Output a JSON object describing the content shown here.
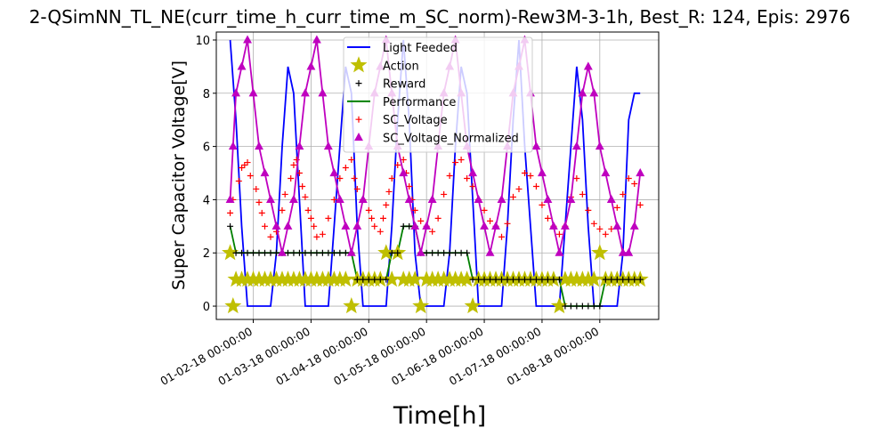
{
  "chart_data": {
    "type": "line",
    "title": "2-QSimNN_TL_NE(curr_time_h_curr_time_m_SC_norm)-Rew3M-3-1h, Best_R: 124, Epis: 2976",
    "xlabel": "Time[h]",
    "ylabel": "Super Capacitor Voltage[V]",
    "ylim": [
      -0.5,
      10.3
    ],
    "xlim": [
      -2.4,
      74.2
    ],
    "yticks": [
      "0",
      "2",
      "4",
      "6",
      "8",
      "10"
    ],
    "xticks": [
      {
        "label": "01-02-18 00:00:00",
        "x": 4
      },
      {
        "label": "01-03-18 00:00:00",
        "x": 14
      },
      {
        "label": "01-04-18 00:00:00",
        "x": 24
      },
      {
        "label": "01-05-18 00:00:00",
        "x": 34
      },
      {
        "label": "01-06-18 00:00:00",
        "x": 44
      },
      {
        "label": "01-07-18 00:00:00",
        "x": 54
      },
      {
        "label": "01-08-18 00:00:00",
        "x": 64
      }
    ],
    "grid": true,
    "legend_position": "upper-center",
    "series": [
      {
        "name": "Light Feeded",
        "style": "line",
        "color": "#0000ff",
        "x": [
          0,
          1,
          2,
          3,
          4,
          5,
          6,
          7,
          8,
          9,
          10,
          11,
          12,
          13,
          14,
          15,
          16,
          17,
          18,
          19,
          20,
          21,
          22,
          23,
          24,
          25,
          26,
          27,
          28,
          29,
          30,
          31,
          32,
          33,
          34,
          35,
          36,
          37,
          38,
          39,
          40,
          41,
          42,
          43,
          44,
          45,
          46,
          47,
          48,
          49,
          50,
          51,
          52,
          53,
          54,
          55,
          56,
          57,
          58,
          59,
          60,
          61,
          62,
          63,
          64,
          65,
          66,
          67,
          68,
          69,
          70,
          71
        ],
        "y": [
          10,
          7,
          3,
          0,
          0,
          0,
          0,
          0,
          2,
          6,
          9,
          8,
          4,
          0,
          0,
          0,
          0,
          0,
          3,
          6,
          9,
          8,
          3,
          0,
          0,
          0,
          0,
          0,
          3,
          7,
          10,
          7,
          2,
          0,
          0,
          0,
          0,
          0,
          2,
          6,
          9,
          8,
          4,
          0,
          0,
          0,
          0,
          0,
          3,
          7,
          10,
          6,
          3,
          0,
          0,
          0,
          0,
          0,
          3,
          6,
          9,
          7,
          3,
          0,
          0,
          0,
          0,
          0,
          2,
          7,
          8,
          8
        ]
      },
      {
        "name": "Action",
        "style": "star",
        "color": "#bfbf00",
        "x": [
          0,
          0.5,
          1,
          2,
          3,
          4,
          5,
          6,
          7,
          8,
          9,
          10,
          11,
          12,
          13,
          14,
          15,
          16,
          17,
          18,
          19,
          20,
          21,
          22,
          23,
          24,
          25,
          26,
          27,
          28,
          29,
          30,
          31,
          32,
          33,
          34,
          35,
          36,
          37,
          38,
          39,
          40,
          41,
          42,
          43,
          44,
          45,
          46,
          47,
          48,
          49,
          50,
          51,
          52,
          53,
          54,
          55,
          56,
          57,
          58,
          59,
          60,
          61,
          62,
          63,
          64,
          65,
          66,
          67,
          68,
          69,
          70,
          71
        ],
        "y": [
          2,
          0,
          1,
          1,
          1,
          1,
          1,
          1,
          1,
          1,
          1,
          1,
          1,
          1,
          1,
          1,
          1,
          1,
          1,
          1,
          1,
          1,
          0,
          1,
          1,
          1,
          1,
          1,
          2,
          1,
          2,
          1,
          1,
          1,
          0,
          1,
          1,
          1,
          1,
          1,
          1,
          1,
          1,
          0,
          1,
          1,
          1,
          1,
          1,
          1,
          1,
          1,
          1,
          1,
          1,
          1,
          1,
          1,
          0,
          1,
          1,
          1,
          1,
          1,
          1,
          2,
          1,
          1,
          1,
          1,
          1,
          1,
          1
        ]
      },
      {
        "name": "Reward",
        "style": "plus",
        "color": "#000000",
        "x": [
          0,
          1,
          2,
          3,
          4,
          5,
          6,
          7,
          8,
          9,
          10,
          11,
          12,
          13,
          14,
          15,
          16,
          17,
          18,
          19,
          20,
          21,
          22,
          23,
          24,
          25,
          26,
          27,
          28,
          29,
          30,
          31,
          32,
          33,
          34,
          35,
          36,
          37,
          38,
          39,
          40,
          41,
          42,
          43,
          44,
          45,
          46,
          47,
          48,
          49,
          50,
          51,
          52,
          53,
          54,
          55,
          56,
          57,
          58,
          59,
          60,
          61,
          62,
          63,
          64,
          65,
          66,
          67,
          68,
          69,
          70,
          71
        ],
        "y": [
          3,
          2,
          2,
          2,
          2,
          2,
          2,
          2,
          2,
          2,
          2,
          2,
          2,
          2,
          2,
          2,
          2,
          2,
          2,
          2,
          2,
          2,
          1,
          1,
          1,
          1,
          1,
          1,
          2,
          2,
          3,
          3,
          3,
          2,
          2,
          2,
          2,
          2,
          2,
          2,
          2,
          2,
          1,
          1,
          1,
          1,
          1,
          1,
          1,
          1,
          1,
          1,
          1,
          1,
          1,
          1,
          1,
          1,
          0,
          0,
          0,
          0,
          0,
          0,
          0,
          1,
          1,
          1,
          1,
          1,
          1,
          1
        ]
      },
      {
        "name": "Performance",
        "style": "line",
        "color": "#008000",
        "x": [
          0,
          1,
          2,
          3,
          4,
          5,
          6,
          7,
          8,
          9,
          10,
          11,
          12,
          13,
          14,
          15,
          16,
          17,
          18,
          19,
          20,
          21,
          22,
          23,
          24,
          25,
          26,
          27,
          28,
          29,
          30,
          31,
          32,
          33,
          34,
          35,
          36,
          37,
          38,
          39,
          40,
          41,
          42,
          43,
          44,
          45,
          46,
          47,
          48,
          49,
          50,
          51,
          52,
          53,
          54,
          55,
          56,
          57,
          58,
          59,
          60,
          61,
          62,
          63,
          64,
          65,
          66,
          67,
          68,
          69,
          70,
          71
        ],
        "y": [
          3,
          2,
          2,
          2,
          2,
          2,
          2,
          2,
          2,
          2,
          2,
          2,
          2,
          2,
          2,
          2,
          2,
          2,
          2,
          2,
          2,
          2,
          1,
          1,
          1,
          1,
          1,
          1,
          2,
          2,
          3,
          3,
          3,
          2,
          2,
          2,
          2,
          2,
          2,
          2,
          2,
          2,
          1,
          1,
          1,
          1,
          1,
          1,
          1,
          1,
          1,
          1,
          1,
          1,
          1,
          1,
          1,
          1,
          0,
          0,
          0,
          0,
          0,
          0,
          0,
          1,
          1,
          1,
          1,
          1,
          1,
          1
        ]
      },
      {
        "name": "SC_Voltage",
        "style": "plus",
        "color": "#ff0000",
        "x": [
          0,
          0.5,
          1.5,
          2,
          2.5,
          3,
          3.5,
          4.5,
          5,
          5.5,
          6,
          7,
          8,
          9,
          9.5,
          10.5,
          11,
          11.5,
          12,
          12.5,
          13,
          13.5,
          14,
          14.5,
          15,
          16,
          17,
          18,
          19,
          20,
          21,
          21.5,
          22,
          23,
          24,
          24.5,
          25,
          26,
          26.5,
          27,
          27.5,
          28,
          29,
          30,
          30.5,
          31,
          31.5,
          32,
          33,
          34,
          35,
          36,
          37,
          38,
          39,
          40,
          41,
          42,
          43,
          44,
          45,
          46,
          47,
          48,
          49,
          50,
          51,
          52,
          53,
          54,
          55,
          56,
          57,
          58,
          59,
          60,
          61,
          62,
          63,
          64,
          65,
          66,
          67,
          68,
          69,
          70,
          71
        ],
        "y": [
          3.5,
          4,
          4.7,
          5.2,
          5.3,
          5.4,
          4.9,
          4.4,
          3.9,
          3.5,
          3,
          2.6,
          2.8,
          3.6,
          4.2,
          4.8,
          5.3,
          5.5,
          5,
          4.5,
          4.1,
          3.6,
          3.3,
          3,
          2.6,
          2.7,
          3.3,
          4,
          4.8,
          5.2,
          5.5,
          4.8,
          4.4,
          4,
          3.6,
          3.3,
          3,
          2.8,
          3.3,
          3.8,
          4.3,
          4.8,
          5.3,
          5.5,
          5,
          4.5,
          4,
          3.6,
          3.2,
          3,
          2.8,
          3.3,
          4.2,
          4.9,
          5.4,
          5.5,
          4.8,
          4.5,
          4,
          3.6,
          3.2,
          3,
          2.6,
          3.1,
          4.1,
          4.4,
          5,
          4.9,
          4.5,
          3.8,
          3.3,
          3,
          2.7,
          3,
          4.1,
          4.8,
          4.2,
          3.6,
          3.1,
          2.9,
          2.7,
          2.9,
          3.7,
          4.2,
          4.8,
          4.6,
          3.8
        ]
      },
      {
        "name": "SC_Voltage_Normalized",
        "style": "triangle-line",
        "color": "#bf00bf",
        "x": [
          0,
          0.5,
          1,
          2,
          3,
          4,
          5,
          6,
          7,
          8,
          9,
          10,
          11,
          12,
          13,
          14,
          15,
          16,
          17,
          18,
          19,
          20,
          21,
          22,
          23,
          24,
          25,
          26,
          27,
          28,
          29,
          30,
          31,
          32,
          33,
          34,
          35,
          36,
          37,
          38,
          39,
          40,
          41,
          42,
          43,
          44,
          45,
          46,
          47,
          48,
          49,
          50,
          51,
          52,
          53,
          54,
          55,
          56,
          57,
          58,
          59,
          60,
          61,
          62,
          63,
          64,
          65,
          66,
          67,
          68,
          69,
          70,
          71
        ],
        "y": [
          4,
          6,
          8,
          9,
          10,
          8,
          6,
          5,
          4,
          3,
          2,
          3,
          4,
          6,
          8,
          9,
          10,
          8,
          6,
          5,
          4,
          3,
          2,
          3,
          4,
          6,
          8,
          9,
          10,
          8,
          6,
          5,
          4,
          3,
          2,
          3,
          4,
          6,
          8,
          9,
          10,
          8,
          6,
          5,
          4,
          3,
          2,
          3,
          4,
          6,
          8,
          9,
          10,
          8,
          6,
          5,
          4,
          3,
          2,
          3,
          4,
          6,
          8,
          9,
          8,
          6,
          5,
          4,
          3,
          2,
          2,
          3,
          5
        ]
      }
    ]
  }
}
